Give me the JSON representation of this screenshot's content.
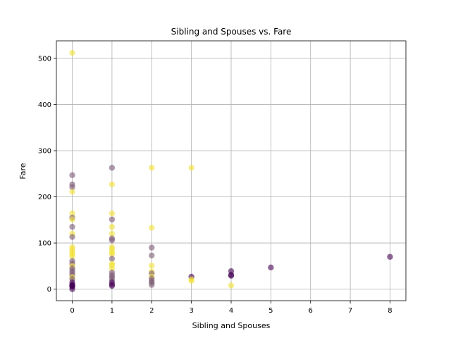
{
  "chart_data": {
    "type": "scatter",
    "title": "Sibling and Spouses vs. Fare",
    "xlabel": "Sibling and Spouses",
    "ylabel": "Fare",
    "xlim": [
      -0.4,
      8.4
    ],
    "ylim": [
      -25,
      538
    ],
    "xticks": [
      0,
      1,
      2,
      3,
      4,
      5,
      6,
      7,
      8
    ],
    "yticks": [
      0,
      100,
      200,
      300,
      400,
      500
    ],
    "grid": true,
    "colors": {
      "died": "#440154",
      "mixed": "#7b5a73",
      "survived": "#f2e135"
    },
    "points": [
      {
        "x": 0,
        "y": 512,
        "c": "survived"
      },
      {
        "x": 0,
        "y": 247,
        "c": "mixed"
      },
      {
        "x": 0,
        "y": 227,
        "c": "mixed"
      },
      {
        "x": 0,
        "y": 221,
        "c": "mixed"
      },
      {
        "x": 0,
        "y": 211,
        "c": "survived"
      },
      {
        "x": 0,
        "y": 164,
        "c": "survived"
      },
      {
        "x": 0,
        "y": 155,
        "c": "mixed"
      },
      {
        "x": 0,
        "y": 151,
        "c": "survived"
      },
      {
        "x": 0,
        "y": 135,
        "c": "mixed"
      },
      {
        "x": 0,
        "y": 120,
        "c": "survived"
      },
      {
        "x": 0,
        "y": 113,
        "c": "mixed"
      },
      {
        "x": 0,
        "y": 91,
        "c": "survived"
      },
      {
        "x": 0,
        "y": 86,
        "c": "survived"
      },
      {
        "x": 0,
        "y": 80,
        "c": "survived"
      },
      {
        "x": 0,
        "y": 76,
        "c": "survived"
      },
      {
        "x": 0,
        "y": 71,
        "c": "survived"
      },
      {
        "x": 0,
        "y": 61,
        "c": "mixed"
      },
      {
        "x": 0,
        "y": 55,
        "c": "mixed"
      },
      {
        "x": 0,
        "y": 50,
        "c": "survived"
      },
      {
        "x": 0,
        "y": 45,
        "c": "mixed"
      },
      {
        "x": 0,
        "y": 40,
        "c": "mixed"
      },
      {
        "x": 0,
        "y": 35,
        "c": "mixed"
      },
      {
        "x": 0,
        "y": 30,
        "c": "mixed"
      },
      {
        "x": 0,
        "y": 26,
        "c": "survived"
      },
      {
        "x": 0,
        "y": 22,
        "c": "mixed"
      },
      {
        "x": 0,
        "y": 15,
        "c": "died"
      },
      {
        "x": 0,
        "y": 10,
        "c": "died"
      },
      {
        "x": 0,
        "y": 8,
        "c": "died"
      },
      {
        "x": 0,
        "y": 7,
        "c": "died"
      },
      {
        "x": 0,
        "y": 5,
        "c": "died"
      },
      {
        "x": 0,
        "y": 0,
        "c": "died"
      },
      {
        "x": 1,
        "y": 263,
        "c": "mixed"
      },
      {
        "x": 1,
        "y": 227,
        "c": "survived"
      },
      {
        "x": 1,
        "y": 164,
        "c": "survived"
      },
      {
        "x": 1,
        "y": 151,
        "c": "mixed"
      },
      {
        "x": 1,
        "y": 135,
        "c": "survived"
      },
      {
        "x": 1,
        "y": 120,
        "c": "survived"
      },
      {
        "x": 1,
        "y": 110,
        "c": "mixed"
      },
      {
        "x": 1,
        "y": 106,
        "c": "mixed"
      },
      {
        "x": 1,
        "y": 91,
        "c": "survived"
      },
      {
        "x": 1,
        "y": 86,
        "c": "survived"
      },
      {
        "x": 1,
        "y": 80,
        "c": "survived"
      },
      {
        "x": 1,
        "y": 76,
        "c": "survived"
      },
      {
        "x": 1,
        "y": 66,
        "c": "mixed"
      },
      {
        "x": 1,
        "y": 55,
        "c": "survived"
      },
      {
        "x": 1,
        "y": 52,
        "c": "survived"
      },
      {
        "x": 1,
        "y": 45,
        "c": "survived"
      },
      {
        "x": 1,
        "y": 36,
        "c": "mixed"
      },
      {
        "x": 1,
        "y": 30,
        "c": "mixed"
      },
      {
        "x": 1,
        "y": 26,
        "c": "mixed"
      },
      {
        "x": 1,
        "y": 21,
        "c": "mixed"
      },
      {
        "x": 1,
        "y": 15,
        "c": "died"
      },
      {
        "x": 1,
        "y": 10,
        "c": "died"
      },
      {
        "x": 1,
        "y": 7,
        "c": "died"
      },
      {
        "x": 2,
        "y": 263,
        "c": "survived"
      },
      {
        "x": 2,
        "y": 133,
        "c": "survived"
      },
      {
        "x": 2,
        "y": 90,
        "c": "mixed"
      },
      {
        "x": 2,
        "y": 73,
        "c": "mixed"
      },
      {
        "x": 2,
        "y": 51,
        "c": "survived"
      },
      {
        "x": 2,
        "y": 38,
        "c": "survived"
      },
      {
        "x": 2,
        "y": 34,
        "c": "mixed"
      },
      {
        "x": 2,
        "y": 27,
        "c": "survived"
      },
      {
        "x": 2,
        "y": 23,
        "c": "mixed"
      },
      {
        "x": 2,
        "y": 18,
        "c": "mixed"
      },
      {
        "x": 2,
        "y": 14,
        "c": "mixed"
      },
      {
        "x": 2,
        "y": 9,
        "c": "mixed"
      },
      {
        "x": 3,
        "y": 263,
        "c": "survived"
      },
      {
        "x": 3,
        "y": 27,
        "c": "died"
      },
      {
        "x": 3,
        "y": 21,
        "c": "survived"
      },
      {
        "x": 3,
        "y": 18,
        "c": "survived"
      },
      {
        "x": 4,
        "y": 39,
        "c": "died"
      },
      {
        "x": 4,
        "y": 31,
        "c": "died"
      },
      {
        "x": 4,
        "y": 29,
        "c": "died"
      },
      {
        "x": 4,
        "y": 8,
        "c": "survived"
      },
      {
        "x": 5,
        "y": 47,
        "c": "died"
      },
      {
        "x": 8,
        "y": 70,
        "c": "died"
      }
    ]
  }
}
